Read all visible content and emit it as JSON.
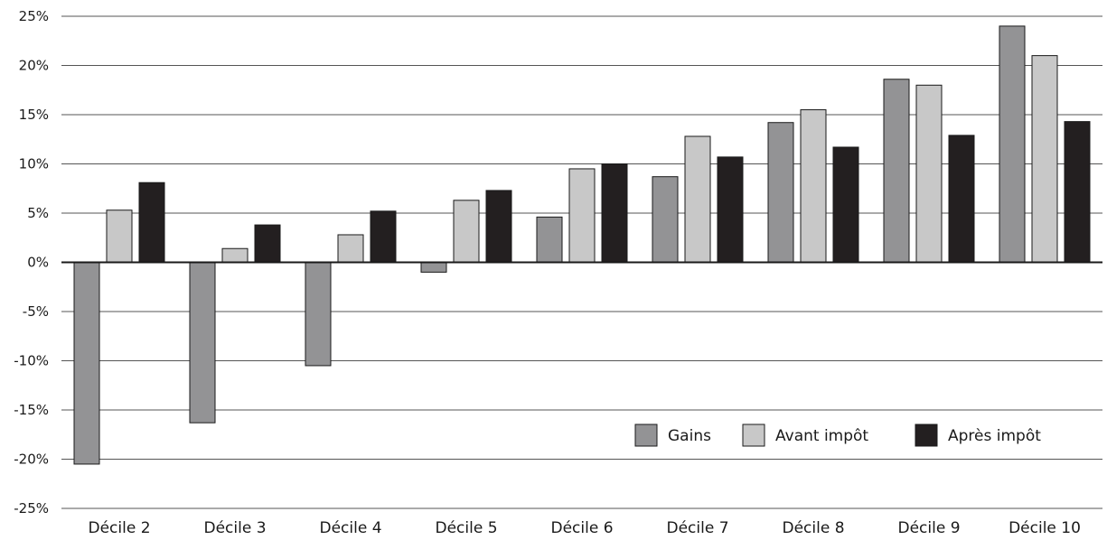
{
  "chart_data": {
    "type": "bar",
    "title": "",
    "xlabel": "",
    "ylabel": "",
    "ylim": [
      -25,
      25
    ],
    "yticks": [
      25,
      20,
      15,
      10,
      5,
      0,
      -5,
      -10,
      -15,
      -20,
      -25
    ],
    "ytick_format": "%",
    "grid": true,
    "legend_position": "bottom-right",
    "categories": [
      "Décile 2",
      "Décile 3",
      "Décile 4",
      "Décile 5",
      "Décile 6",
      "Décile 7",
      "Décile 8",
      "Décile 9",
      "Décile 10"
    ],
    "series": [
      {
        "name": "Gains",
        "color": "#939395",
        "values": [
          -20.5,
          -16.3,
          -10.5,
          -1.0,
          4.6,
          8.7,
          14.2,
          18.6,
          24.0
        ]
      },
      {
        "name": "Avant impôt",
        "color": "#c8c8c8",
        "values": [
          5.3,
          1.4,
          2.8,
          6.3,
          9.5,
          12.8,
          15.5,
          18.0,
          21.0
        ]
      },
      {
        "name": "Après impôt",
        "color": "#231f20",
        "values": [
          8.1,
          3.8,
          5.2,
          7.3,
          10.0,
          10.7,
          11.7,
          12.9,
          14.3
        ]
      }
    ]
  }
}
